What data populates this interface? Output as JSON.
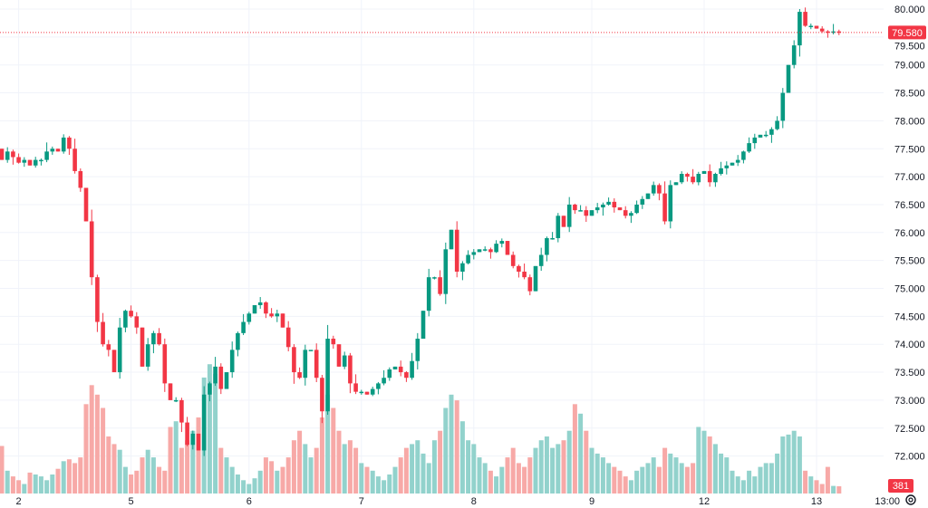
{
  "chart_data": {
    "type": "candlestick",
    "title": "",
    "price_axis": {
      "min": 71.5,
      "max": 80.0,
      "step": 0.5,
      "tick_labels": [
        "80.000",
        "79.500",
        "79.000",
        "78.500",
        "78.000",
        "77.500",
        "77.000",
        "76.500",
        "76.000",
        "75.500",
        "75.000",
        "74.500",
        "74.000",
        "73.500",
        "73.000",
        "72.500",
        "72.000"
      ]
    },
    "time_axis": {
      "tick_labels": [
        {
          "label": "2",
          "index": 3
        },
        {
          "label": "5",
          "index": 23
        },
        {
          "label": "6",
          "index": 44
        },
        {
          "label": "7",
          "index": 64
        },
        {
          "label": "8",
          "index": 84
        },
        {
          "label": "9",
          "index": 105
        },
        {
          "label": "12",
          "index": 125
        },
        {
          "label": "13",
          "index": 145
        },
        {
          "label": "13:00",
          "index": 156
        }
      ]
    },
    "grid": true,
    "first_open": 77.5,
    "closes": [
      77.3,
      77.45,
      77.35,
      77.25,
      77.3,
      77.2,
      77.3,
      77.3,
      77.45,
      77.5,
      77.45,
      77.7,
      77.5,
      77.1,
      76.8,
      76.2,
      75.2,
      74.4,
      74.0,
      73.9,
      73.5,
      74.3,
      74.6,
      74.5,
      74.3,
      73.6,
      74.0,
      74.2,
      74.0,
      73.3,
      73.0,
      73.0,
      72.6,
      72.2,
      72.4,
      72.1,
      73.1,
      73.3,
      73.6,
      73.2,
      73.5,
      73.9,
      74.2,
      74.4,
      74.55,
      74.7,
      74.75,
      74.55,
      74.5,
      74.55,
      74.3,
      73.95,
      73.5,
      73.4,
      73.9,
      73.9,
      73.4,
      72.8,
      74.1,
      74.0,
      73.6,
      73.8,
      73.3,
      73.15,
      73.15,
      73.1,
      73.2,
      73.3,
      73.4,
      73.55,
      73.6,
      73.5,
      73.4,
      73.7,
      74.1,
      74.6,
      75.2,
      75.2,
      74.9,
      75.7,
      76.05,
      75.3,
      75.45,
      75.6,
      75.65,
      75.7,
      75.7,
      75.65,
      75.8,
      75.85,
      75.6,
      75.4,
      75.3,
      75.2,
      74.95,
      75.4,
      75.6,
      75.9,
      75.9,
      76.3,
      76.1,
      76.5,
      76.4,
      76.4,
      76.3,
      76.4,
      76.45,
      76.5,
      76.55,
      76.45,
      76.4,
      76.3,
      76.35,
      76.5,
      76.6,
      76.7,
      76.85,
      76.7,
      76.2,
      76.85,
      76.9,
      77.05,
      77.0,
      76.9,
      77.05,
      77.1,
      76.9,
      77.05,
      77.15,
      77.2,
      77.25,
      77.3,
      77.45,
      77.6,
      77.7,
      77.75,
      77.75,
      77.85,
      78.0,
      78.5,
      79.0,
      79.35,
      79.95,
      79.7,
      79.7,
      79.65,
      79.6,
      79.58,
      79.6,
      79.58
    ],
    "volumes": [
      2500,
      1200,
      900,
      700,
      500,
      1100,
      1000,
      900,
      700,
      1000,
      1300,
      1700,
      1800,
      1600,
      1900,
      4700,
      5700,
      5200,
      4500,
      3000,
      2600,
      2300,
      1400,
      1000,
      1200,
      1900,
      2300,
      1900,
      1400,
      1200,
      3500,
      3800,
      2400,
      2800,
      3300,
      4000,
      6100,
      6800,
      6300,
      2400,
      1900,
      1400,
      1000,
      700,
      500,
      800,
      1200,
      1900,
      1700,
      1200,
      1400,
      1900,
      2800,
      3300,
      2600,
      1900,
      2400,
      4000,
      5200,
      4500,
      3300,
      2600,
      2800,
      2400,
      1600,
      1400,
      1200,
      900,
      700,
      1000,
      1400,
      1900,
      2400,
      2600,
      2800,
      2100,
      1600,
      2800,
      3300,
      4500,
      5200,
      4900,
      3800,
      2800,
      2600,
      1900,
      1600,
      1200,
      900,
      1400,
      1900,
      2400,
      1600,
      1400,
      1900,
      2400,
      2800,
      3000,
      2400,
      2600,
      2800,
      3300,
      4700,
      4200,
      3300,
      2400,
      2100,
      1900,
      1600,
      1400,
      1200,
      900,
      700,
      1200,
      1400,
      1600,
      1900,
      1400,
      2400,
      2100,
      1900,
      1600,
      1400,
      1600,
      3500,
      3300,
      3000,
      2600,
      2100,
      1900,
      1200,
      900,
      700,
      1200,
      900,
      1400,
      1600,
      1600,
      2100,
      3000,
      3100,
      3300,
      3000,
      1200,
      900,
      700,
      500,
      1400,
      400,
      381
    ],
    "last_price": 79.58,
    "last_price_label": "79.580",
    "last_volume_label": "381"
  },
  "colors": {
    "up": "#089981",
    "down": "#f23645",
    "up_volume": "#92d2cc",
    "down_volume": "#f7a9a7",
    "grid": "#f0f3fa",
    "price_tag": "#f23645"
  },
  "icons": {
    "settings": "gear-icon"
  }
}
